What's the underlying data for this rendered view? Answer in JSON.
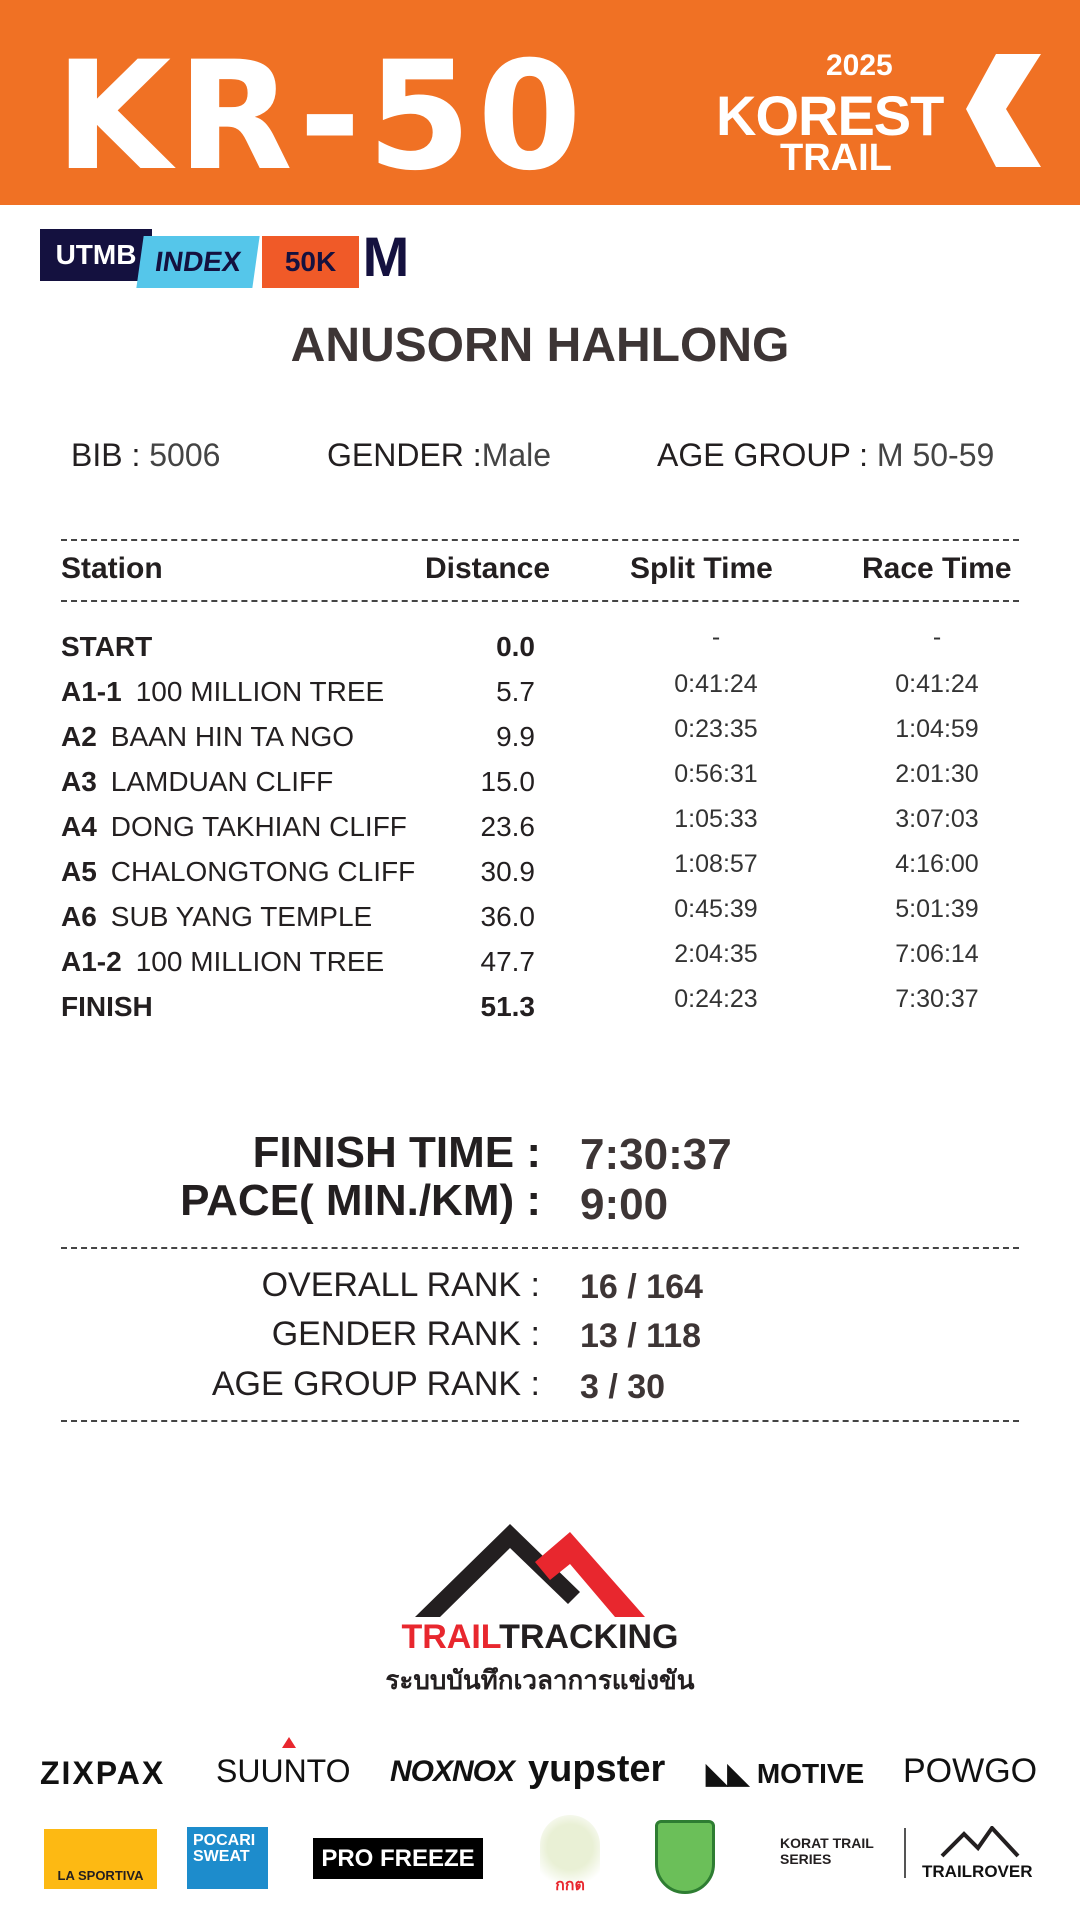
{
  "header": {
    "race_code": "KR-50",
    "event_year": "2025",
    "event_name_1": "KOREST",
    "event_name_2": "TRAIL",
    "brand_color": "#f07124"
  },
  "badges": {
    "utmb": "UTMB",
    "index": "INDEX",
    "category": "50K",
    "gender_mark": "M"
  },
  "runner": {
    "name": "ANUSORN HAHLONG",
    "bib_label": "BIB :",
    "bib": "5006",
    "gender_label": "GENDER  :",
    "gender": "Male",
    "age_group_label": "AGE GROUP  :",
    "age_group": "M 50-59"
  },
  "table": {
    "headers": [
      "Station",
      "Distance",
      "Split Time",
      "Race Time"
    ],
    "rows": [
      {
        "code": "START",
        "name": "",
        "distance": "0.0",
        "split": "-",
        "race": "-"
      },
      {
        "code": "A1-1",
        "name": "100  MILLION TREE",
        "distance": "5.7",
        "split": "0:41:24",
        "race": "0:41:24"
      },
      {
        "code": "A2",
        "name": "BAAN HIN TA NGO",
        "distance": "9.9",
        "split": "0:23:35",
        "race": "1:04:59"
      },
      {
        "code": "A3",
        "name": "LAMDUAN CLIFF",
        "distance": "15.0",
        "split": "0:56:31",
        "race": "2:01:30"
      },
      {
        "code": "A4",
        "name": "DONG TAKHIAN CLIFF",
        "distance": "23.6",
        "split": "1:05:33",
        "race": "3:07:03"
      },
      {
        "code": "A5",
        "name": "CHALONGTONG CLIFF",
        "distance": "30.9",
        "split": "1:08:57",
        "race": "4:16:00"
      },
      {
        "code": "A6",
        "name": "SUB YANG TEMPLE",
        "distance": "36.0",
        "split": "0:45:39",
        "race": "5:01:39"
      },
      {
        "code": "A1-2",
        "name": "100  MILLION TREE",
        "distance": "47.7",
        "split": "2:04:35",
        "race": "7:06:14"
      },
      {
        "code": "FINISH",
        "name": "",
        "distance": "51.3",
        "split": "0:24:23",
        "race": "7:30:37"
      }
    ]
  },
  "result": {
    "finish_label": "FINISH TIME :",
    "finish": "7:30:37",
    "pace_label": "PACE( MIN./KM) :",
    "pace": "9:00"
  },
  "ranks": [
    {
      "label": "OVERALL RANK  :",
      "value": "16 / 164"
    },
    {
      "label": "GENDER RANK  :",
      "value": "13 / 118"
    },
    {
      "label": "AGE GROUP RANK :",
      "value": "3 / 30"
    }
  ],
  "timing": {
    "brand_a": "TRAIL",
    "brand_b": "TRACKING",
    "tagline": "ระบบบันทึกเวลาการแข่งขัน"
  },
  "sponsors": {
    "row1": [
      "ZIXPAX",
      "SUUNTO",
      "NOXNOX",
      "yupster",
      "MOTIVE",
      "POWGO"
    ],
    "row2": [
      "LA SPORTIVA",
      "POCARI SWEAT",
      "PRO FREEZE",
      "กกต",
      "KORAT TRAIL SERIES",
      "TRAILROVER"
    ]
  }
}
